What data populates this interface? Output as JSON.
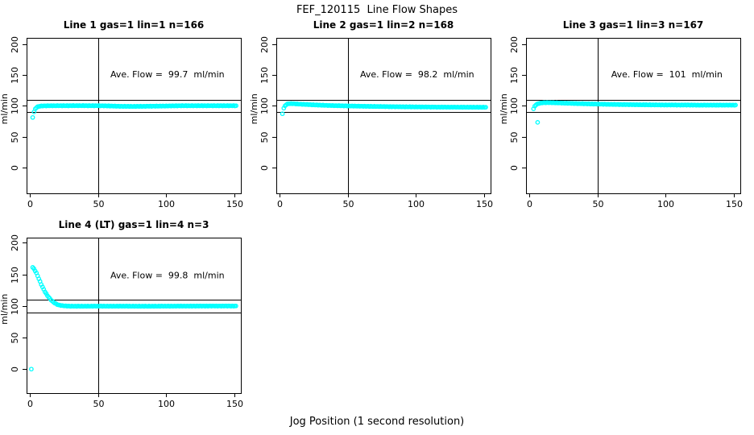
{
  "chart_data": {
    "type": "scatter",
    "title": "FEF_120115  Line Flow Shapes",
    "xlabel": "Jog Position (1 second resolution)",
    "ylabel": "ml/min",
    "x_ticks": [
      0,
      50,
      100,
      150
    ],
    "y_ticks": [
      0,
      50,
      100,
      150,
      200
    ],
    "xlim": [
      0,
      152
    ],
    "ylim": [
      0,
      200
    ],
    "grid": false,
    "legend": "none",
    "point_color": "#00ffff",
    "ref_lines": {
      "horizontal": [
        90,
        110
      ],
      "vertical": [
        50
      ]
    },
    "panels": [
      {
        "id": "line-1",
        "grid": [
          0,
          0
        ],
        "title": "Line 1 gas=1 lin=1 n=166",
        "n": 166,
        "ave_flow": "99.7",
        "annotation": "Ave. Flow =  99.7  ml/min",
        "annotation_xy": [
          101,
          151
        ],
        "step": 0.9,
        "noise": 0.35,
        "isolated": [
          [
            2,
            81
          ]
        ],
        "anchors": [
          [
            3,
            90
          ],
          [
            3.8,
            94.5
          ],
          [
            4.6,
            96.8
          ],
          [
            5.5,
            98.2
          ],
          [
            7,
            99.2
          ],
          [
            9,
            99.7
          ],
          [
            12,
            99.9
          ],
          [
            20,
            100
          ],
          [
            35,
            100.1
          ],
          [
            50,
            100
          ],
          [
            58,
            99.7
          ],
          [
            65,
            99.1
          ],
          [
            75,
            98.9
          ],
          [
            85,
            99.1
          ],
          [
            95,
            99.4
          ],
          [
            105,
            99.8
          ],
          [
            115,
            100
          ],
          [
            130,
            100
          ],
          [
            145,
            100
          ],
          [
            151.5,
            100
          ]
        ]
      },
      {
        "id": "line-2",
        "grid": [
          0,
          1
        ],
        "title": "Line 2 gas=1 lin=2 n=168",
        "n": 168,
        "ave_flow": "98.2",
        "annotation": "Ave. Flow =  98.2  ml/min",
        "annotation_xy": [
          101,
          151
        ],
        "step": 0.9,
        "noise": 0.3,
        "isolated": [
          [
            2,
            87
          ]
        ],
        "anchors": [
          [
            3,
            96
          ],
          [
            4,
            100
          ],
          [
            5,
            102.3
          ],
          [
            6.5,
            103.2
          ],
          [
            8,
            103.4
          ],
          [
            10,
            103.2
          ],
          [
            13,
            102.8
          ],
          [
            17,
            102.3
          ],
          [
            22,
            101.7
          ],
          [
            28,
            101.1
          ],
          [
            35,
            100.5
          ],
          [
            45,
            99.9
          ],
          [
            55,
            99.4
          ],
          [
            65,
            99
          ],
          [
            75,
            98.7
          ],
          [
            85,
            98.4
          ],
          [
            95,
            98.2
          ],
          [
            105,
            98
          ],
          [
            115,
            97.8
          ],
          [
            125,
            97.7
          ],
          [
            135,
            97.6
          ],
          [
            151.5,
            97.5
          ]
        ]
      },
      {
        "id": "line-3",
        "grid": [
          0,
          2
        ],
        "title": "Line 3 gas=1 lin=3 n=167",
        "n": 167,
        "ave_flow": "101",
        "annotation": "Ave. Flow =  101  ml/min",
        "annotation_xy": [
          101,
          151
        ],
        "step": 0.9,
        "noise": 0.3,
        "isolated": [
          [
            6,
            73
          ]
        ],
        "anchors": [
          [
            3,
            95
          ],
          [
            4,
            99.5
          ],
          [
            5,
            101.8
          ],
          [
            6.5,
            103.4
          ],
          [
            8,
            104.2
          ],
          [
            10,
            104.8
          ],
          [
            13,
            105
          ],
          [
            17,
            104.9
          ],
          [
            22,
            104.5
          ],
          [
            28,
            104
          ],
          [
            35,
            103.5
          ],
          [
            45,
            102.9
          ],
          [
            55,
            102.4
          ],
          [
            65,
            102
          ],
          [
            75,
            101.7
          ],
          [
            85,
            101.5
          ],
          [
            95,
            101.3
          ],
          [
            105,
            101.2
          ],
          [
            115,
            101.1
          ],
          [
            125,
            101
          ],
          [
            135,
            101
          ],
          [
            151.5,
            101
          ]
        ]
      },
      {
        "id": "line-4",
        "grid": [
          1,
          0
        ],
        "title": "Line 4 (LT) gas=1 lin=4 n=3",
        "n": 3,
        "ave_flow": "99.8",
        "annotation": "Ave. Flow =  99.8  ml/min",
        "annotation_xy": [
          101,
          149
        ],
        "step": 0.9,
        "noise": 0.3,
        "isolated": [
          [
            1,
            0
          ]
        ],
        "anchors": [
          [
            2,
            161
          ],
          [
            3,
            158.5
          ],
          [
            4,
            155
          ],
          [
            5,
            150.5
          ],
          [
            6,
            145.5
          ],
          [
            7,
            140.5
          ],
          [
            8,
            135.5
          ],
          [
            9,
            130.8
          ],
          [
            10,
            126.5
          ],
          [
            11,
            122.5
          ],
          [
            12,
            119
          ],
          [
            13,
            115.8
          ],
          [
            14,
            113
          ],
          [
            15,
            110.5
          ],
          [
            16,
            108.3
          ],
          [
            17,
            106.4
          ],
          [
            18,
            104.8
          ],
          [
            19,
            103.4
          ],
          [
            20,
            102.3
          ],
          [
            21,
            101.5
          ],
          [
            22.5,
            100.8
          ],
          [
            24,
            100.3
          ],
          [
            26,
            99.9
          ],
          [
            29,
            99.6
          ],
          [
            33,
            99.5
          ],
          [
            40,
            99.5
          ],
          [
            50,
            99.6
          ],
          [
            60,
            99.6
          ],
          [
            70,
            99.6
          ],
          [
            80,
            99.5
          ],
          [
            90,
            99.5
          ],
          [
            100,
            99.6
          ],
          [
            110,
            99.7
          ],
          [
            120,
            99.7
          ],
          [
            130,
            99.8
          ],
          [
            140,
            99.8
          ],
          [
            151.5,
            99.8
          ]
        ]
      }
    ]
  }
}
